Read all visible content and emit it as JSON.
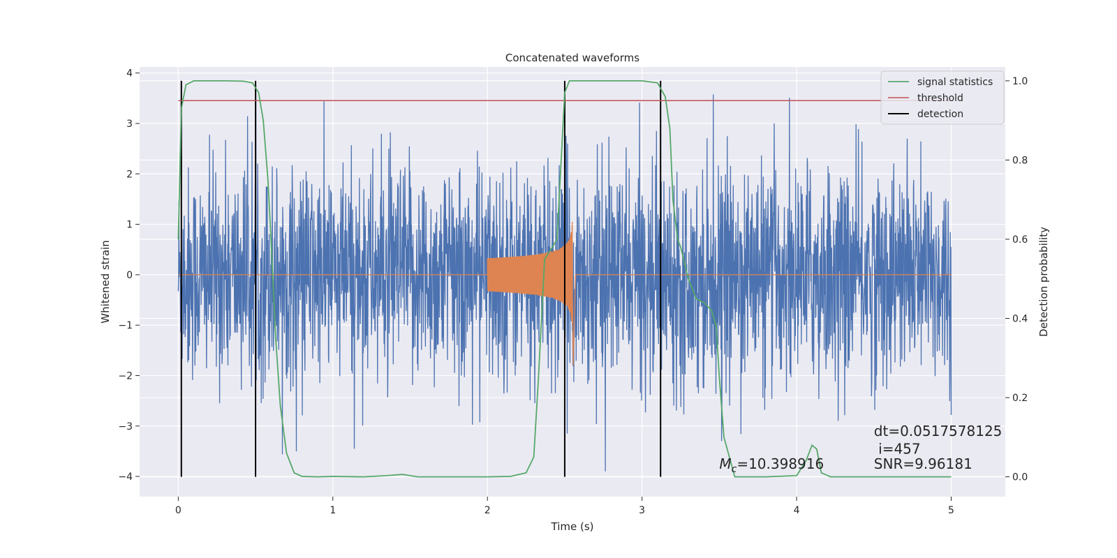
{
  "chart_data": {
    "type": "line",
    "title": "Concatenated waveforms",
    "xlabel": "Time (s)",
    "ylabel": "Whitened strain",
    "y2label": "Detection probability",
    "xlim": [
      -0.25,
      5.35
    ],
    "ylim": [
      -4.4,
      4.12
    ],
    "y2lim": [
      -0.05,
      1.035
    ],
    "xticks": [
      0,
      1,
      2,
      3,
      4,
      5
    ],
    "yticks": [
      -4,
      -3,
      -2,
      -1,
      0,
      1,
      2,
      3,
      4
    ],
    "y2ticks": [
      0.0,
      0.2,
      0.4,
      0.6,
      0.8,
      1.0
    ],
    "xtick_labels": [
      "0",
      "1",
      "2",
      "3",
      "4",
      "5"
    ],
    "ytick_labels": [
      "−4",
      "−3",
      "−2",
      "−1",
      "0",
      "1",
      "2",
      "3",
      "4"
    ],
    "y2tick_labels": [
      "0.0",
      "0.2",
      "0.4",
      "0.6",
      "0.8",
      "1.0"
    ],
    "grid": true,
    "legend_position": "top-right",
    "colors": {
      "strain": "#4c72b0",
      "waveform": "#dd8452",
      "signal_statistics": "#55a868",
      "threshold": "#c44e52",
      "detection": "#000000",
      "background": "#eaeaf2"
    },
    "series": [
      {
        "name": "signal statistics",
        "axis": "right",
        "x": [
          0.0,
          0.02,
          0.05,
          0.1,
          0.2,
          0.3,
          0.42,
          0.48,
          0.52,
          0.55,
          0.58,
          0.6,
          0.63,
          0.66,
          0.7,
          0.75,
          0.8,
          0.9,
          1.0,
          1.2,
          1.35,
          1.45,
          1.55,
          1.7,
          2.0,
          2.15,
          2.25,
          2.3,
          2.33,
          2.37,
          2.42,
          2.45,
          2.5,
          2.53,
          2.57,
          2.65,
          2.8,
          3.0,
          3.1,
          3.15,
          3.18,
          3.2,
          3.23,
          3.25,
          3.3,
          3.35,
          3.4,
          3.45,
          3.48,
          3.5,
          3.53,
          3.6,
          3.8,
          4.0,
          4.06,
          4.1,
          4.13,
          4.16,
          4.22,
          4.3,
          4.6,
          5.0
        ],
        "y": [
          0.6,
          0.93,
          0.99,
          1.0,
          1.0,
          1.0,
          0.999,
          0.995,
          0.97,
          0.9,
          0.75,
          0.6,
          0.35,
          0.18,
          0.06,
          0.01,
          0.001,
          0.0,
          0.001,
          0.0,
          0.003,
          0.006,
          0.0,
          0.0,
          0.0,
          0.001,
          0.01,
          0.05,
          0.25,
          0.55,
          0.58,
          0.6,
          0.97,
          1.0,
          1.0,
          1.0,
          1.0,
          1.0,
          0.995,
          0.96,
          0.88,
          0.7,
          0.6,
          0.58,
          0.5,
          0.45,
          0.44,
          0.42,
          0.38,
          0.25,
          0.1,
          0.0,
          0.0,
          0.003,
          0.04,
          0.08,
          0.07,
          0.01,
          0.0,
          0.0,
          0.0,
          0.0
        ]
      },
      {
        "name": "threshold",
        "axis": "right",
        "x": [
          0.0,
          5.0
        ],
        "y": [
          0.95,
          0.95
        ]
      },
      {
        "name": "detection",
        "axis": "right",
        "x": [
          0.02,
          0.5,
          2.5,
          3.12
        ],
        "ymin": 0.0,
        "ymax": 1.0
      }
    ],
    "strain_noise": {
      "x_range": [
        0.0,
        5.0
      ],
      "typical_peak": 2.6,
      "max": 3.75,
      "min": -3.9
    },
    "chirp": {
      "x_start": 2.0,
      "x_merger": 2.55,
      "x_end": 2.57,
      "amp_start": 0.33,
      "amp_peak": 1.23,
      "amp_min": -1.8
    },
    "annotations": {
      "mc_text": "=10.398916",
      "mc_symbol": "M",
      "mc_sub": "c",
      "dt_text": "dt=0.0517578125",
      "i_text": " i=457",
      "snr_text": "SNR=9.96181",
      "mc_pos": [
        3.5,
        -3.85
      ],
      "dt_pos": [
        4.5,
        -3.2
      ],
      "i_pos": [
        4.5,
        -3.55
      ],
      "snr_pos": [
        4.5,
        -3.85
      ]
    }
  }
}
